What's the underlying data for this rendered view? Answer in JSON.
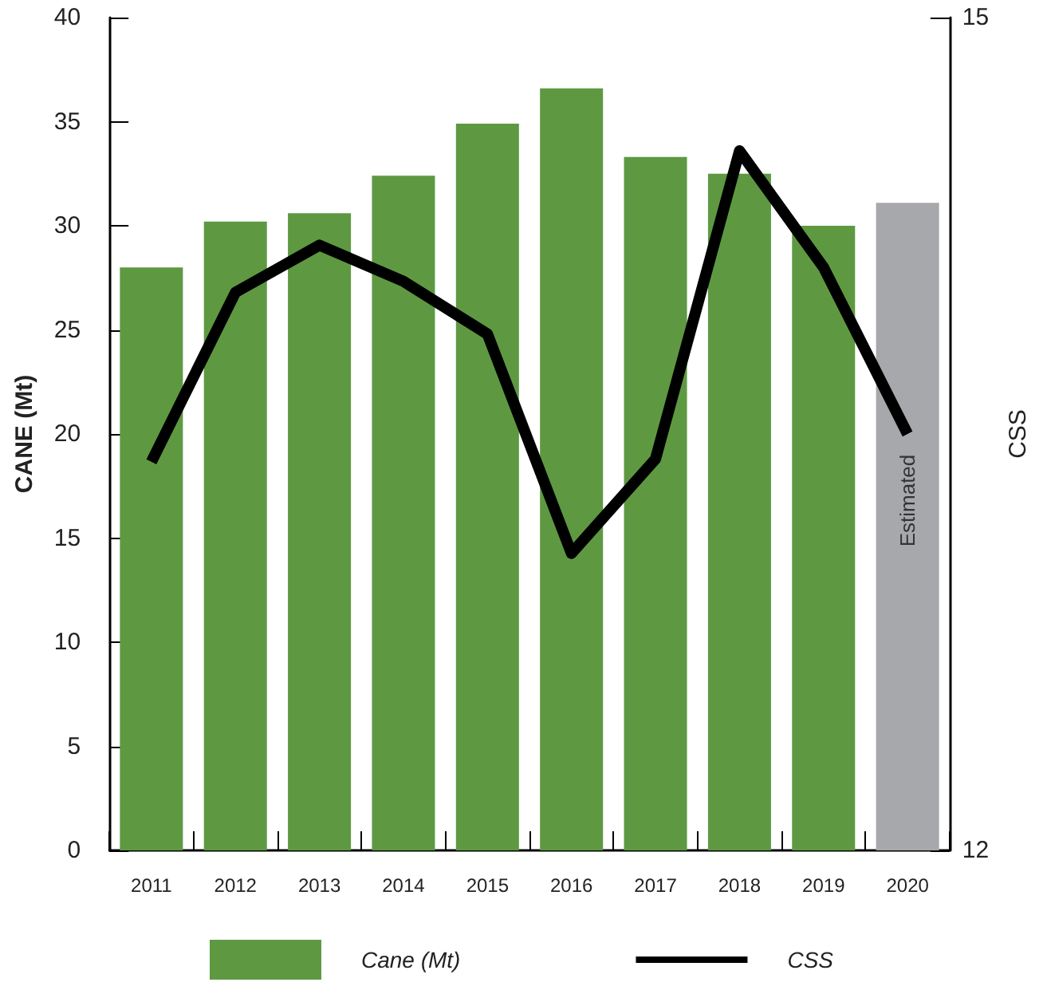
{
  "chart_data": {
    "type": "bar",
    "ylabel": "CANE (Mt)",
    "y2label": "CSS",
    "categories": [
      "2011",
      "2012",
      "2013",
      "2014",
      "2015",
      "2016",
      "2017",
      "2018",
      "2019",
      "2020"
    ],
    "series": [
      {
        "name": "Cane (Mt)",
        "color": "#5e9942",
        "colors": [
          "#5e9942",
          "#5e9942",
          "#5e9942",
          "#5e9942",
          "#5e9942",
          "#5e9942",
          "#5e9942",
          "#5e9942",
          "#5e9942",
          "#a7a8ab"
        ],
        "values": [
          28.0,
          30.2,
          30.6,
          32.4,
          34.9,
          36.6,
          33.3,
          32.5,
          30.0,
          31.1
        ]
      },
      {
        "name": "CSS",
        "type": "line",
        "axis": "y2",
        "color": "#000000",
        "marker": "none",
        "line_style": "solid",
        "values": [
          13.4,
          14.01,
          14.18,
          14.05,
          13.86,
          13.07,
          13.41,
          14.52,
          14.1,
          13.5
        ]
      }
    ],
    "ylim": [
      0,
      40
    ],
    "yticks": [
      0,
      5,
      10,
      15,
      20,
      25,
      30,
      35,
      40
    ],
    "y2lim": [
      12,
      15
    ],
    "y2ticks": [
      12,
      15
    ],
    "annotations": [
      "Estimated"
    ],
    "legend": "bottom",
    "grid": false
  }
}
